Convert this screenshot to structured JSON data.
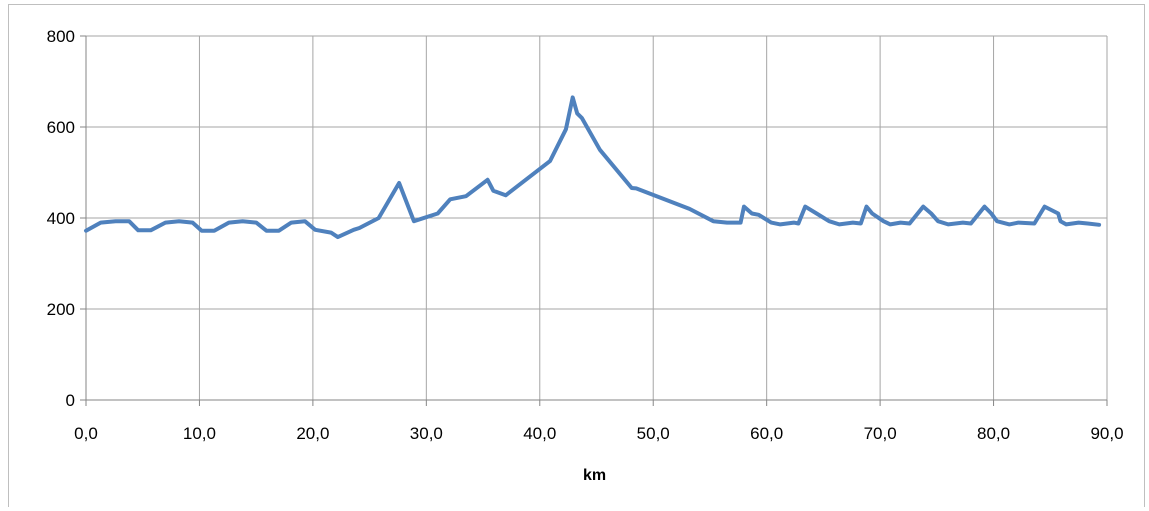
{
  "chart_data": {
    "type": "line",
    "title": "",
    "xlabel": "km",
    "ylabel": "",
    "xlim": [
      0,
      90
    ],
    "ylim": [
      0,
      800
    ],
    "x_ticks": [
      0,
      10,
      20,
      30,
      40,
      50,
      60,
      70,
      80,
      90
    ],
    "x_tick_labels": [
      "0,0",
      "10,0",
      "20,0",
      "30,0",
      "40,0",
      "50,0",
      "60,0",
      "70,0",
      "80,0",
      "90,0"
    ],
    "y_ticks": [
      0,
      200,
      400,
      600,
      800
    ],
    "y_tick_labels": [
      "0",
      "200",
      "400",
      "600",
      "800"
    ],
    "grid": true,
    "legend": "none",
    "colors": {
      "line": "#4f81bd",
      "grid": "#a6a6a6",
      "axis": "#868686"
    },
    "series": [
      {
        "x": [
          0.0,
          1.3,
          2.6,
          3.8,
          4.6,
          5.7,
          7.0,
          8.2,
          9.4,
          10.2,
          11.3,
          12.6,
          13.8,
          15.0,
          15.9,
          17.0,
          18.1,
          19.3,
          20.2,
          21.6,
          22.2,
          23.6,
          24.1,
          25.8,
          27.6,
          28.9,
          31.0,
          32.1,
          33.5,
          35.4,
          35.9,
          37.0,
          40.9,
          42.3,
          42.9,
          43.3,
          43.7,
          45.3,
          48.1,
          48.5,
          53.2,
          55.3,
          56.5,
          57.2,
          57.7,
          58.0,
          58.7,
          59.3,
          60.4,
          61.2,
          62.4,
          62.8,
          63.4,
          64.4,
          65.5,
          66.4,
          67.6,
          68.3,
          68.8,
          69.3,
          70.3,
          70.9,
          71.8,
          72.6,
          73.8,
          74.5,
          75.1,
          76.0,
          77.3,
          78.0,
          79.2,
          79.8,
          80.3,
          81.4,
          82.2,
          83.6,
          84.5,
          85.7,
          85.9,
          86.4,
          87.5,
          88.3,
          89.3
        ],
        "values": [
          372,
          390,
          393,
          393,
          373,
          373,
          390,
          393,
          390,
          372,
          372,
          390,
          393,
          390,
          372,
          372,
          390,
          393,
          374,
          368,
          358,
          374,
          378,
          400,
          477,
          393,
          410,
          441,
          448,
          484,
          460,
          450,
          525,
          595,
          665,
          630,
          620,
          550,
          466,
          465,
          420,
          393,
          390,
          390,
          390,
          425,
          410,
          407,
          390,
          386,
          390,
          388,
          425,
          410,
          393,
          386,
          390,
          388,
          425,
          410,
          393,
          386,
          390,
          388,
          425,
          410,
          393,
          386,
          390,
          388,
          425,
          410,
          393,
          386,
          390,
          388,
          425,
          410,
          393,
          386,
          390,
          388,
          385
        ]
      }
    ]
  }
}
